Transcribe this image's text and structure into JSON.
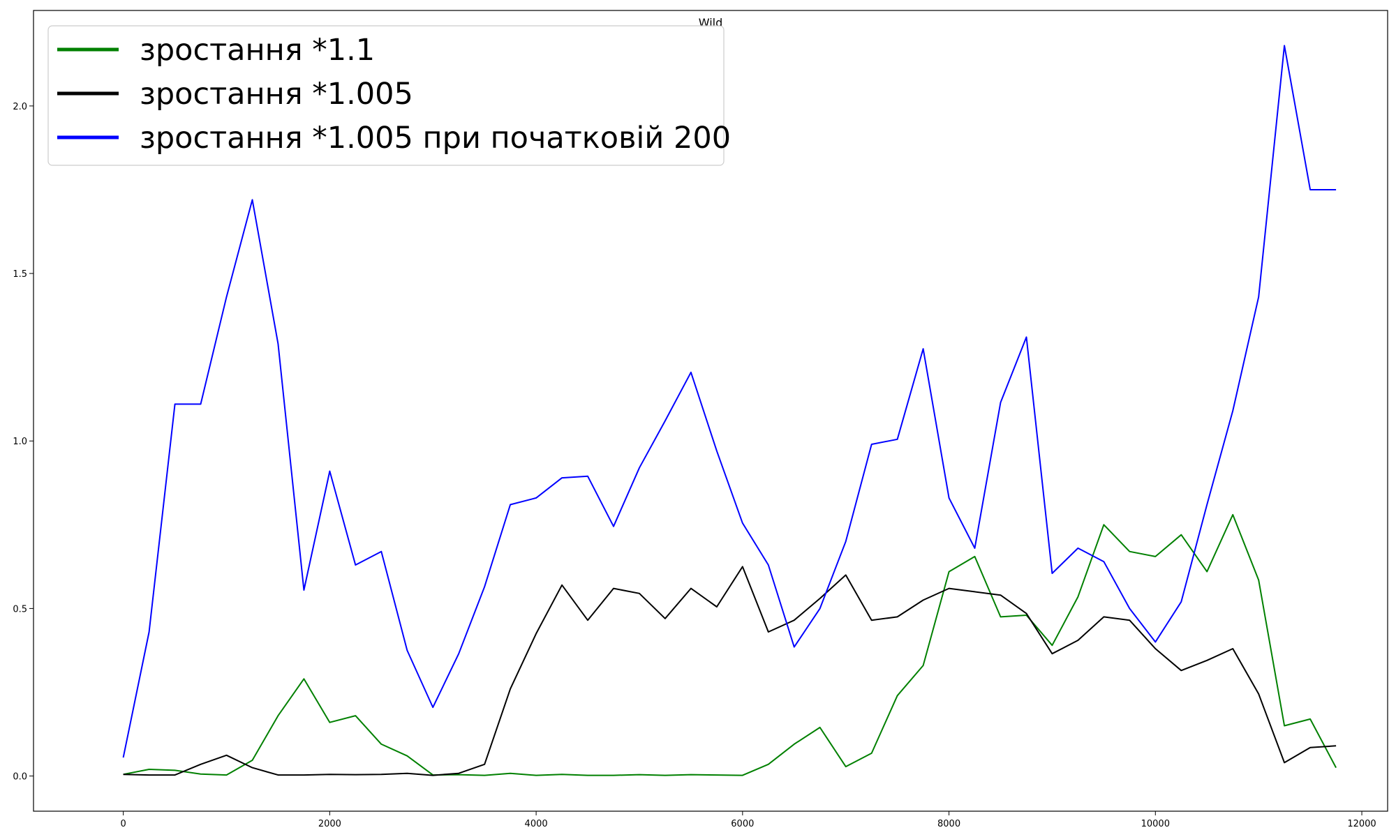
{
  "chart_data": {
    "type": "line",
    "title": "Wild",
    "xlabel": "",
    "ylabel": "",
    "xlim": [
      -870,
      12250
    ],
    "ylim": [
      -0.105,
      2.285
    ],
    "xticks": [
      0,
      2000,
      4000,
      6000,
      8000,
      10000,
      12000
    ],
    "xtick_labels": [
      "0",
      "2000",
      "4000",
      "6000",
      "8000",
      "10000",
      "12000"
    ],
    "yticks": [
      0.0,
      0.5,
      1.0,
      1.5,
      2.0
    ],
    "ytick_labels": [
      "0.0",
      "0.5",
      "1.0",
      "1.5",
      "2.0"
    ],
    "grid": false,
    "legend_position": "top-left",
    "x": [
      0,
      250,
      500,
      750,
      1000,
      1250,
      1500,
      1750,
      2000,
      2250,
      2500,
      2750,
      3000,
      3250,
      3500,
      3750,
      4000,
      4250,
      4500,
      4750,
      5000,
      5250,
      5500,
      5750,
      6000,
      6250,
      6500,
      6750,
      7000,
      7250,
      7500,
      7750,
      8000,
      8250,
      8500,
      8750,
      9000,
      9250,
      9500,
      9750,
      10000,
      10250,
      10500,
      10750,
      11000,
      11250,
      11500,
      11750
    ],
    "series": [
      {
        "name": "зростання *1.1",
        "color": "#008000",
        "values": [
          0.005,
          0.02,
          0.017,
          0.006,
          0.003,
          0.047,
          0.18,
          0.29,
          0.16,
          0.18,
          0.095,
          0.06,
          0.003,
          0.004,
          0.002,
          0.008,
          0.002,
          0.005,
          0.002,
          0.002,
          0.004,
          0.002,
          0.004,
          0.003,
          0.002,
          0.035,
          0.095,
          0.145,
          0.028,
          0.068,
          0.24,
          0.33,
          0.61,
          0.655,
          0.475,
          0.48,
          0.39,
          0.535,
          0.75,
          0.67,
          0.655,
          0.72,
          0.61,
          0.78,
          0.585,
          0.15,
          0.17,
          0.025
        ]
      },
      {
        "name": "зростання *1.005",
        "color": "#000000",
        "values": [
          0.005,
          0.003,
          0.003,
          0.035,
          0.062,
          0.025,
          0.003,
          0.003,
          0.005,
          0.004,
          0.005,
          0.008,
          0.002,
          0.008,
          0.035,
          0.26,
          0.425,
          0.57,
          0.465,
          0.56,
          0.545,
          0.47,
          0.56,
          0.505,
          0.625,
          0.43,
          0.465,
          0.53,
          0.6,
          0.465,
          0.475,
          0.525,
          0.56,
          0.55,
          0.54,
          0.485,
          0.365,
          0.405,
          0.475,
          0.465,
          0.38,
          0.315,
          0.345,
          0.38,
          0.245,
          0.04,
          0.085,
          0.09
        ]
      },
      {
        "name": "зростання *1.005 при початковій 200",
        "color": "#0000ff",
        "values": [
          0.055,
          0.43,
          1.11,
          1.11,
          1.43,
          1.72,
          1.29,
          0.555,
          0.91,
          0.63,
          0.67,
          0.375,
          0.205,
          0.365,
          0.565,
          0.81,
          0.83,
          0.89,
          0.895,
          0.745,
          0.92,
          1.06,
          1.205,
          0.97,
          0.755,
          0.63,
          0.385,
          0.5,
          0.7,
          0.99,
          1.005,
          1.275,
          0.83,
          0.68,
          1.115,
          1.31,
          0.605,
          0.68,
          0.64,
          0.5,
          0.4,
          0.52,
          0.81,
          1.09,
          1.43,
          2.18,
          1.75,
          1.75
        ]
      }
    ]
  }
}
